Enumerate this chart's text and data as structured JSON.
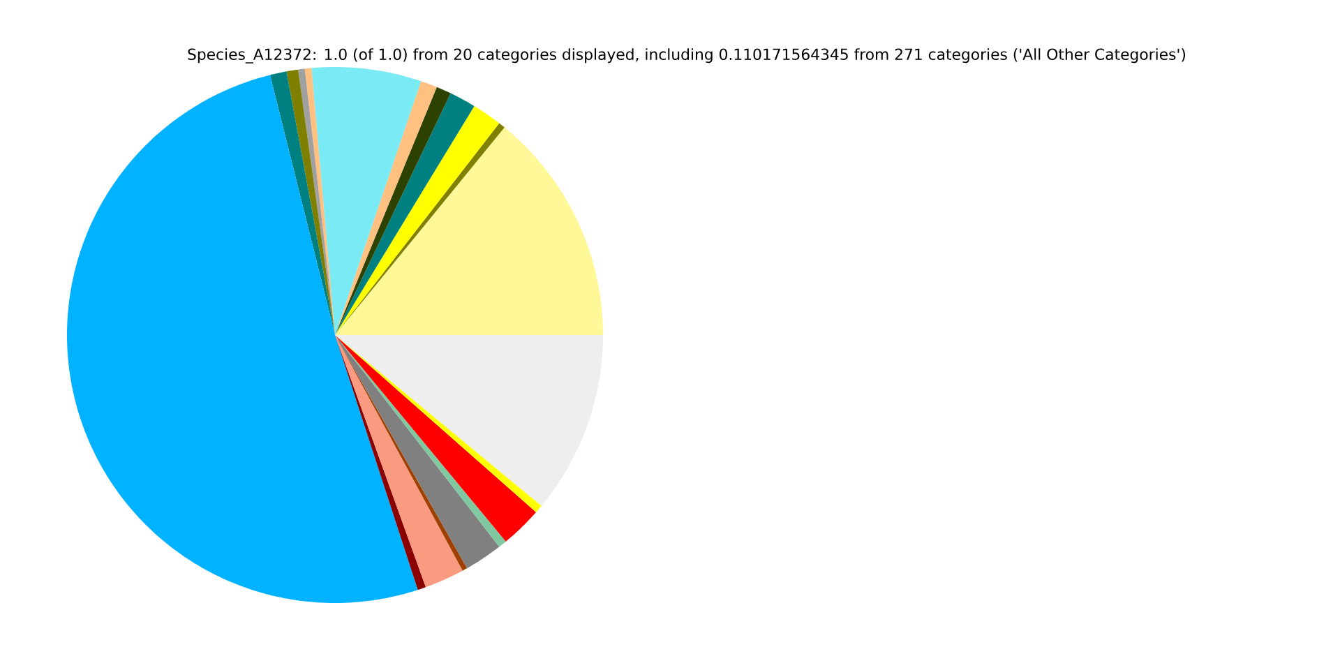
{
  "chart_data": {
    "type": "pie",
    "title": "Species_A12372: 1.0 (of 1.0) from 20 categories displayed, including 0.110171564345 from 271 categories ('All Other Categories')",
    "categories": [
      null,
      null,
      null,
      null,
      null,
      null,
      null,
      null,
      null,
      null,
      null,
      null,
      null,
      null,
      null,
      null,
      null,
      null,
      null,
      null
    ],
    "values": [
      14.1,
      0.4,
      1.8,
      1.6,
      0.9,
      1.0,
      6.6,
      0.4,
      0.4,
      0.7,
      1.0,
      51.1,
      0.5,
      2.4,
      0.3,
      2.3,
      0.5,
      2.5,
      0.5,
      11.0
    ],
    "colors": [
      "#fff899",
      "#808000",
      "#ffff00",
      "#008080",
      "#2e4200",
      "#ffc080",
      "#7aeaf5",
      "#ffc080",
      "#a0a0a0",
      "#808000",
      "#008080",
      "#00b2ff",
      "#8b0000",
      "#fa9a80",
      "#a04000",
      "#808080",
      "#80c8a0",
      "#ff0000",
      "#ffff00",
      "#eeeeee"
    ]
  }
}
